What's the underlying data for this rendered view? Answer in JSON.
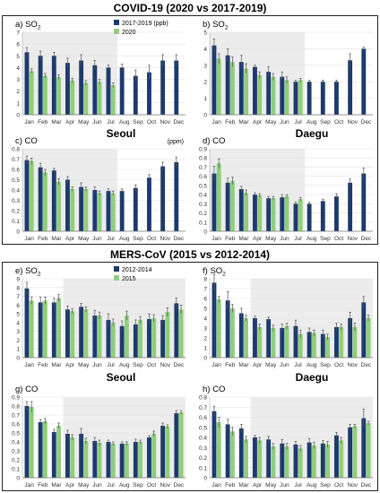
{
  "titles": {
    "covid": "COVID-19 (2020 vs 2017-2019)",
    "mers": "MERS-CoV (2015 vs 2012-2014)"
  },
  "cities": {
    "seoul": "Seoul",
    "daegu": "Daegu"
  },
  "colors": {
    "baseline": "#1c3a6e",
    "event": "#8fce7c",
    "shade": "#ececec",
    "error_bar": "#555555"
  },
  "chart_data": [
    {
      "id": "a",
      "panel": "a) SO",
      "sub": "2",
      "type": "bar",
      "categories": [
        "Jan",
        "Feb",
        "Mar",
        "Apr",
        "May",
        "Jun",
        "Jul",
        "Aug",
        "Sep",
        "Oct",
        "Nov",
        "Dec"
      ],
      "ylim": [
        0,
        7
      ],
      "yticks": [
        0,
        1,
        2,
        3,
        4,
        5,
        6,
        7
      ],
      "shade_months": [
        1,
        7
      ],
      "legend": [
        "2017-2019 (ppb)",
        "2020"
      ],
      "series": [
        {
          "name": "2017-2019",
          "values": [
            5.3,
            5.0,
            5.0,
            4.4,
            4.6,
            4.2,
            4.0,
            4.0,
            3.3,
            3.6,
            4.6,
            4.6
          ],
          "err": [
            0.4,
            0.4,
            0.3,
            0.4,
            0.5,
            0.4,
            0.2,
            0.3,
            0.5,
            0.6,
            0.5,
            0.5
          ]
        },
        {
          "name": "2020",
          "values": [
            3.7,
            3.3,
            3.2,
            2.9,
            2.7,
            2.8,
            2.5,
            null,
            null,
            null,
            null,
            null
          ],
          "err": [
            0.2,
            0.2,
            0.2,
            0.2,
            0.2,
            0.2,
            0.2,
            null,
            null,
            null,
            null,
            null
          ]
        }
      ]
    },
    {
      "id": "b",
      "panel": "b) SO",
      "sub": "2",
      "type": "bar",
      "categories": [
        "Jan",
        "Feb",
        "Mar",
        "Apr",
        "May",
        "Jun",
        "Jul",
        "Aug",
        "Sep",
        "Oct",
        "Nov",
        "Dec"
      ],
      "ylim": [
        0,
        5
      ],
      "yticks": [
        0,
        1,
        2,
        3,
        4,
        5
      ],
      "shade_months": [
        1,
        7
      ],
      "series": [
        {
          "name": "2017-2019",
          "values": [
            4.2,
            3.6,
            3.2,
            2.9,
            2.6,
            2.3,
            2.0,
            2.0,
            2.0,
            2.0,
            3.3,
            4.0
          ],
          "err": [
            0.4,
            0.4,
            0.4,
            0.1,
            0.3,
            0.3,
            0.1,
            0.1,
            0.1,
            0.1,
            0.4,
            0.1
          ]
        },
        {
          "name": "2020",
          "values": [
            3.4,
            3.2,
            2.8,
            2.4,
            2.3,
            2.1,
            2.1,
            null,
            null,
            null,
            null,
            null
          ],
          "err": [
            0.3,
            0.3,
            0.3,
            0.2,
            0.2,
            0.2,
            0.1,
            null,
            null,
            null,
            null,
            null
          ]
        }
      ]
    },
    {
      "id": "c",
      "panel": "c) CO",
      "sub": "",
      "type": "bar",
      "categories": [
        "Jan",
        "Feb",
        "Mar",
        "Apr",
        "May",
        "Jun",
        "Jul",
        "Aug",
        "Sep",
        "Oct",
        "Nov",
        "Dec"
      ],
      "ylim": [
        0,
        0.8
      ],
      "yticks": [
        0,
        0.1,
        0.2,
        0.3,
        0.4,
        0.5,
        0.6,
        0.7,
        0.8
      ],
      "shade_months": [
        1,
        7
      ],
      "unit_label": "(ppm)",
      "series": [
        {
          "name": "2017-2019",
          "values": [
            0.69,
            0.62,
            0.59,
            0.5,
            0.43,
            0.4,
            0.39,
            0.39,
            0.42,
            0.52,
            0.63,
            0.67
          ],
          "err": [
            0.04,
            0.04,
            0.02,
            0.03,
            0.04,
            0.03,
            0.02,
            0.02,
            0.03,
            0.03,
            0.04,
            0.05
          ]
        },
        {
          "name": "2020",
          "values": [
            0.68,
            0.57,
            0.48,
            0.41,
            0.41,
            0.37,
            0.37,
            null,
            null,
            null,
            null,
            null
          ],
          "err": [
            0.03,
            0.03,
            0.03,
            0.02,
            0.02,
            0.02,
            0.02,
            null,
            null,
            null,
            null,
            null
          ]
        }
      ]
    },
    {
      "id": "d",
      "panel": "d) CO",
      "sub": "",
      "type": "bar",
      "categories": [
        "Jan",
        "Feb",
        "Mar",
        "Apr",
        "May",
        "Jun",
        "Jul",
        "Aug",
        "Sep",
        "Oct",
        "Nov",
        "Dec"
      ],
      "ylim": [
        0,
        0.9
      ],
      "yticks": [
        0,
        0.1,
        0.2,
        0.3,
        0.4,
        0.5,
        0.6,
        0.7,
        0.8,
        0.9
      ],
      "shade_months": [
        1,
        7
      ],
      "series": [
        {
          "name": "2017-2019",
          "values": [
            0.63,
            0.53,
            0.46,
            0.4,
            0.36,
            0.37,
            0.3,
            0.3,
            0.33,
            0.38,
            0.53,
            0.63
          ],
          "err": [
            0.08,
            0.05,
            0.03,
            0.02,
            0.02,
            0.03,
            0.02,
            0.02,
            0.02,
            0.03,
            0.04,
            0.06
          ]
        },
        {
          "name": "2020",
          "values": [
            0.74,
            0.55,
            0.42,
            0.39,
            0.36,
            0.38,
            0.35,
            null,
            null,
            null,
            null,
            null
          ],
          "err": [
            0.05,
            0.04,
            0.03,
            0.02,
            0.02,
            0.02,
            0.02,
            null,
            null,
            null,
            null,
            null
          ]
        }
      ]
    },
    {
      "id": "e",
      "panel": "e) SO",
      "sub": "2",
      "type": "bar",
      "categories": [
        "Jan",
        "Feb",
        "Mar",
        "Apr",
        "May",
        "Jun",
        "Jul",
        "Aug",
        "Sep",
        "Oct",
        "Nov",
        "Dec"
      ],
      "ylim": [
        0,
        9
      ],
      "yticks": [
        0,
        1,
        2,
        3,
        4,
        5,
        6,
        7,
        8,
        9
      ],
      "shade_months": [
        4,
        12
      ],
      "legend": [
        "2012-2014",
        "2015"
      ],
      "series": [
        {
          "name": "2012-2014",
          "values": [
            7.9,
            6.3,
            6.3,
            5.5,
            5.8,
            4.8,
            4.3,
            3.6,
            3.8,
            4.4,
            4.3,
            6.2
          ],
          "err": [
            0.7,
            0.6,
            0.5,
            0.4,
            0.4,
            0.6,
            0.7,
            0.6,
            0.5,
            0.6,
            0.5,
            0.6
          ]
        },
        {
          "name": "2015",
          "values": [
            6.5,
            6.5,
            6.8,
            5.3,
            5.5,
            4.8,
            4.0,
            4.8,
            4.3,
            4.5,
            5.2,
            5.5
          ],
          "err": [
            0.4,
            0.4,
            0.4,
            0.3,
            0.3,
            0.4,
            0.4,
            0.5,
            0.4,
            0.4,
            0.5,
            0.5
          ]
        }
      ]
    },
    {
      "id": "f",
      "panel": "f) SO",
      "sub": "2",
      "type": "bar",
      "categories": [
        "Jan",
        "Feb",
        "Mar",
        "Apr",
        "May",
        "Jun",
        "Jul",
        "Aug",
        "Sep",
        "Oct",
        "Nov",
        "Dec"
      ],
      "ylim": [
        0,
        8
      ],
      "yticks": [
        0,
        1,
        2,
        3,
        4,
        5,
        6,
        7,
        8
      ],
      "shade_months": [
        4,
        12
      ],
      "series": [
        {
          "name": "2012-2014",
          "values": [
            7.6,
            5.8,
            4.5,
            4.0,
            3.9,
            3.0,
            3.2,
            2.6,
            2.4,
            3.1,
            4.0,
            5.6
          ],
          "err": [
            0.8,
            0.9,
            0.5,
            0.2,
            0.2,
            0.4,
            0.6,
            0.4,
            0.4,
            0.4,
            0.6,
            0.6
          ]
        },
        {
          "name": "2015",
          "values": [
            5.9,
            5.0,
            4.0,
            3.1,
            3.0,
            3.2,
            2.4,
            2.5,
            2.1,
            3.1,
            3.1,
            4.0
          ],
          "err": [
            0.3,
            0.4,
            0.3,
            0.3,
            0.3,
            0.3,
            0.4,
            0.3,
            0.3,
            0.3,
            0.4,
            0.3
          ]
        }
      ]
    },
    {
      "id": "g",
      "panel": "g) CO",
      "sub": "",
      "type": "bar",
      "categories": [
        "Jan",
        "Feb",
        "Mar",
        "Apr",
        "May",
        "Jun",
        "Jul",
        "Aug",
        "Sep",
        "Oct",
        "Nov",
        "Dec"
      ],
      "ylim": [
        0,
        0.9
      ],
      "yticks": [
        0,
        0.1,
        0.2,
        0.3,
        0.4,
        0.5,
        0.6,
        0.7,
        0.8,
        0.9
      ],
      "shade_months": [
        4,
        12
      ],
      "series": [
        {
          "name": "2012-2014",
          "values": [
            0.8,
            0.62,
            0.51,
            0.49,
            0.49,
            0.41,
            0.4,
            0.38,
            0.4,
            0.45,
            0.58,
            0.72
          ],
          "err": [
            0.05,
            0.03,
            0.03,
            0.04,
            0.06,
            0.04,
            0.02,
            0.02,
            0.03,
            0.02,
            0.03,
            0.03
          ]
        },
        {
          "name": "2015",
          "values": [
            0.79,
            0.63,
            0.58,
            0.45,
            0.41,
            0.39,
            0.38,
            0.38,
            0.4,
            0.49,
            0.57,
            0.73
          ],
          "err": [
            0.06,
            0.03,
            0.03,
            0.03,
            0.03,
            0.03,
            0.02,
            0.02,
            0.02,
            0.03,
            0.02,
            0.02
          ]
        }
      ]
    },
    {
      "id": "h",
      "panel": "h) CO",
      "sub": "",
      "type": "bar",
      "categories": [
        "Jan",
        "Feb",
        "Mar",
        "Apr",
        "May",
        "Jun",
        "Jul",
        "Aug",
        "Sep",
        "Oct",
        "Nov",
        "Dec"
      ],
      "ylim": [
        0,
        0.8
      ],
      "yticks": [
        0,
        0.1,
        0.2,
        0.3,
        0.4,
        0.5,
        0.6,
        0.7,
        0.8
      ],
      "shade_months": [
        4,
        12
      ],
      "series": [
        {
          "name": "2012-2014",
          "values": [
            0.66,
            0.53,
            0.49,
            0.4,
            0.38,
            0.34,
            0.33,
            0.35,
            0.34,
            0.42,
            0.5,
            0.59
          ],
          "err": [
            0.05,
            0.05,
            0.04,
            0.02,
            0.03,
            0.04,
            0.03,
            0.04,
            0.03,
            0.03,
            0.03,
            0.09
          ]
        },
        {
          "name": "2015",
          "values": [
            0.55,
            0.46,
            0.38,
            0.37,
            0.31,
            0.31,
            0.29,
            0.32,
            0.33,
            0.37,
            0.51,
            0.54
          ],
          "err": [
            0.05,
            0.04,
            0.03,
            0.03,
            0.03,
            0.03,
            0.03,
            0.03,
            0.03,
            0.03,
            0.02,
            0.02
          ]
        }
      ]
    }
  ]
}
